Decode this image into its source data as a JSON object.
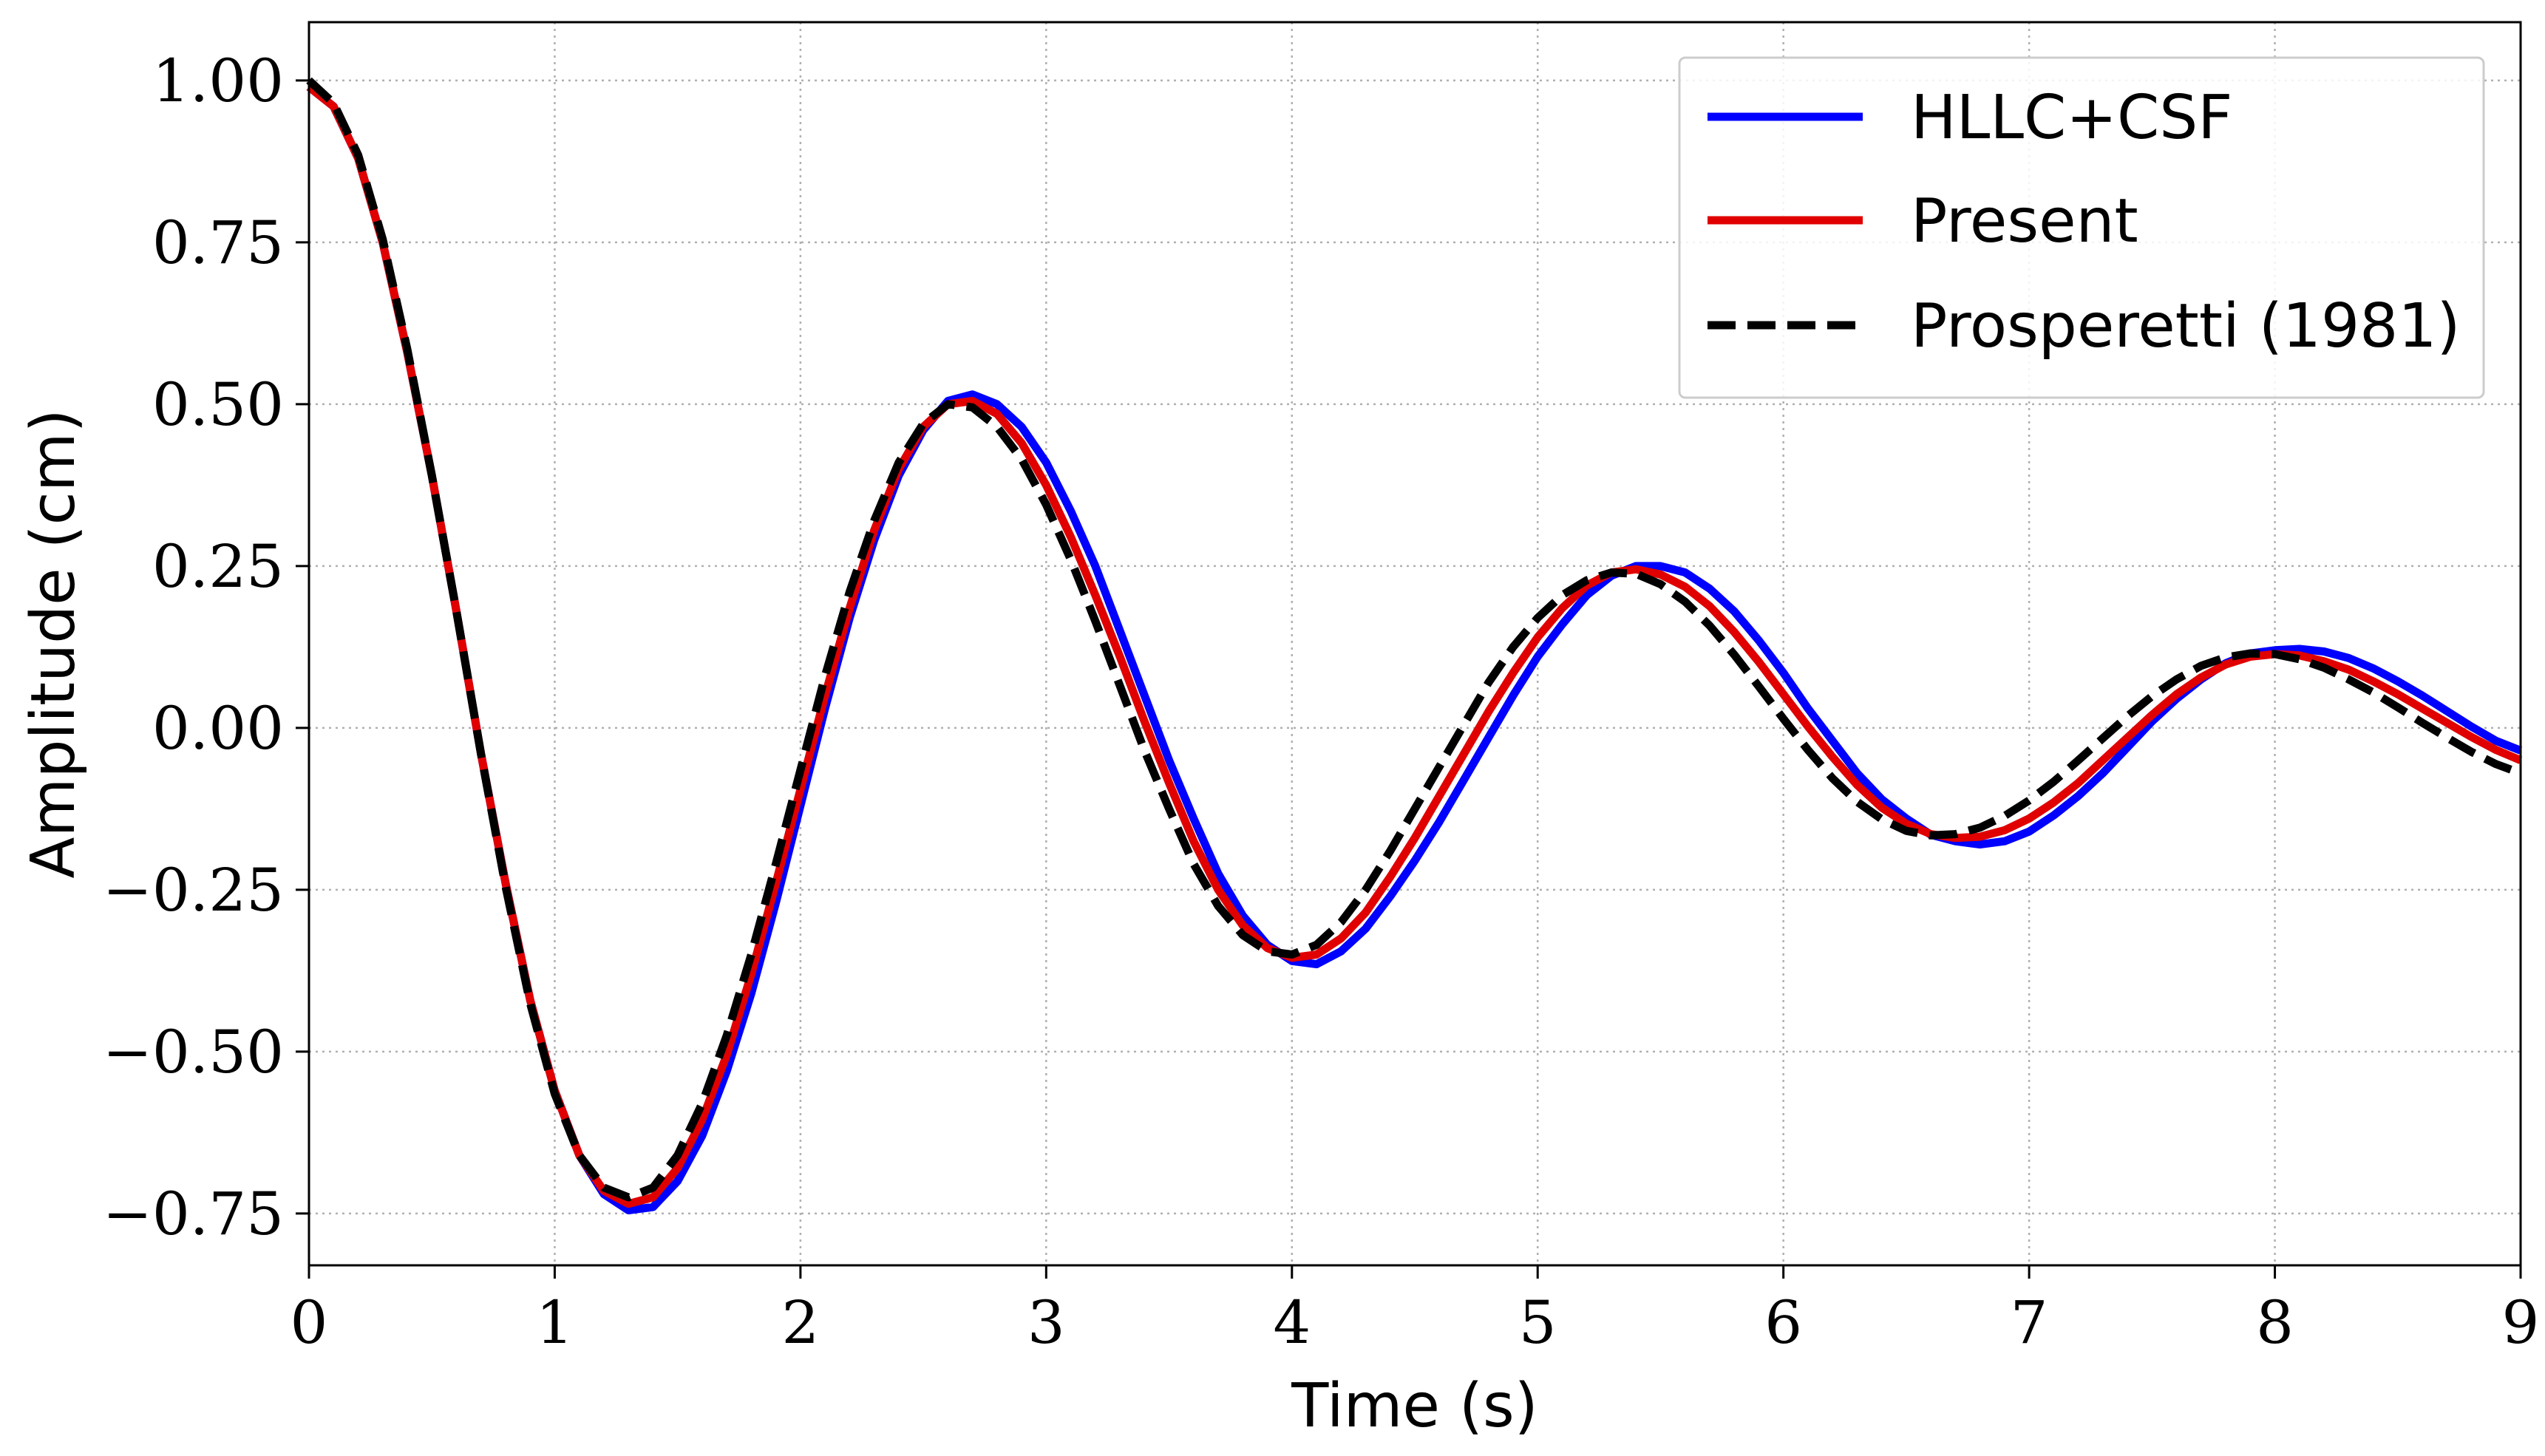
{
  "chart_data": {
    "type": "line",
    "title": "",
    "xlabel": "Time (s)",
    "ylabel": "Amplitude (cm)",
    "xlim": [
      0,
      9
    ],
    "ylim": [
      -0.83,
      1.09
    ],
    "x_ticks": [
      0,
      1,
      2,
      3,
      4,
      5,
      6,
      7,
      8,
      9
    ],
    "x_tick_labels": [
      "0",
      "1",
      "2",
      "3",
      "4",
      "5",
      "6",
      "7",
      "8",
      "9"
    ],
    "y_ticks": [
      1.0,
      0.75,
      0.5,
      0.25,
      0.0,
      -0.25,
      -0.5,
      -0.75
    ],
    "y_tick_labels": [
      "1.00",
      "0.75",
      "0.50",
      "0.25",
      "0.00",
      "−0.25",
      "−0.50",
      "−0.75"
    ],
    "grid": true,
    "legend_position": "top-right",
    "series": [
      {
        "name": "HLLC+CSF",
        "color": "#0000ff",
        "style": "solid",
        "x": [
          0,
          0.1,
          0.2,
          0.3,
          0.4,
          0.5,
          0.6,
          0.7,
          0.8,
          0.9,
          1.0,
          1.1,
          1.2,
          1.3,
          1.4,
          1.5,
          1.6,
          1.7,
          1.8,
          1.9,
          2.0,
          2.1,
          2.2,
          2.3,
          2.4,
          2.5,
          2.6,
          2.7,
          2.8,
          2.9,
          3.0,
          3.1,
          3.2,
          3.3,
          3.4,
          3.5,
          3.6,
          3.7,
          3.8,
          3.9,
          4.0,
          4.1,
          4.2,
          4.3,
          4.4,
          4.5,
          4.6,
          4.7,
          4.8,
          4.9,
          5.0,
          5.1,
          5.2,
          5.3,
          5.4,
          5.5,
          5.6,
          5.7,
          5.8,
          5.9,
          6.0,
          6.1,
          6.2,
          6.3,
          6.4,
          6.5,
          6.6,
          6.7,
          6.8,
          6.9,
          7.0,
          7.1,
          7.2,
          7.3,
          7.4,
          7.5,
          7.6,
          7.7,
          7.8,
          7.9,
          8.0,
          8.1,
          8.2,
          8.3,
          8.4,
          8.5,
          8.6,
          8.7,
          8.8,
          8.9,
          9.0
        ],
        "y": [
          0.99,
          0.96,
          0.88,
          0.75,
          0.58,
          0.39,
          0.18,
          -0.04,
          -0.24,
          -0.42,
          -0.56,
          -0.66,
          -0.72,
          -0.745,
          -0.74,
          -0.7,
          -0.63,
          -0.53,
          -0.41,
          -0.27,
          -0.12,
          0.03,
          0.17,
          0.29,
          0.39,
          0.46,
          0.505,
          0.515,
          0.5,
          0.465,
          0.41,
          0.335,
          0.25,
          0.15,
          0.05,
          -0.05,
          -0.14,
          -0.225,
          -0.29,
          -0.335,
          -0.36,
          -0.365,
          -0.345,
          -0.31,
          -0.26,
          -0.205,
          -0.145,
          -0.08,
          -0.015,
          0.05,
          0.11,
          0.16,
          0.205,
          0.235,
          0.25,
          0.25,
          0.24,
          0.215,
          0.18,
          0.135,
          0.085,
          0.03,
          -0.02,
          -0.07,
          -0.11,
          -0.14,
          -0.165,
          -0.175,
          -0.18,
          -0.175,
          -0.16,
          -0.135,
          -0.105,
          -0.07,
          -0.03,
          0.01,
          0.045,
          0.075,
          0.1,
          0.115,
          0.12,
          0.122,
          0.118,
          0.108,
          0.092,
          0.072,
          0.05,
          0.026,
          0.002,
          -0.02,
          -0.035
        ]
      },
      {
        "name": "Present",
        "color": "#e00000",
        "style": "solid",
        "x": [
          0,
          0.1,
          0.2,
          0.3,
          0.4,
          0.5,
          0.6,
          0.7,
          0.8,
          0.9,
          1.0,
          1.1,
          1.2,
          1.3,
          1.4,
          1.5,
          1.6,
          1.7,
          1.8,
          1.9,
          2.0,
          2.1,
          2.2,
          2.3,
          2.4,
          2.5,
          2.6,
          2.7,
          2.8,
          2.9,
          3.0,
          3.1,
          3.2,
          3.3,
          3.4,
          3.5,
          3.6,
          3.7,
          3.8,
          3.9,
          4.0,
          4.1,
          4.2,
          4.3,
          4.4,
          4.5,
          4.6,
          4.7,
          4.8,
          4.9,
          5.0,
          5.1,
          5.2,
          5.3,
          5.4,
          5.5,
          5.6,
          5.7,
          5.8,
          5.9,
          6.0,
          6.1,
          6.2,
          6.3,
          6.4,
          6.5,
          6.6,
          6.7,
          6.8,
          6.9,
          7.0,
          7.1,
          7.2,
          7.3,
          7.4,
          7.5,
          7.6,
          7.7,
          7.8,
          7.9,
          8.0,
          8.1,
          8.2,
          8.3,
          8.4,
          8.5,
          8.6,
          8.7,
          8.8,
          8.9,
          9.0
        ],
        "y": [
          0.99,
          0.96,
          0.88,
          0.75,
          0.58,
          0.39,
          0.18,
          -0.04,
          -0.24,
          -0.42,
          -0.56,
          -0.66,
          -0.715,
          -0.735,
          -0.725,
          -0.68,
          -0.605,
          -0.505,
          -0.38,
          -0.24,
          -0.095,
          0.05,
          0.185,
          0.305,
          0.4,
          0.465,
          0.5,
          0.505,
          0.485,
          0.44,
          0.375,
          0.295,
          0.205,
          0.11,
          0.01,
          -0.085,
          -0.175,
          -0.25,
          -0.305,
          -0.34,
          -0.355,
          -0.35,
          -0.325,
          -0.285,
          -0.23,
          -0.17,
          -0.105,
          -0.04,
          0.025,
          0.085,
          0.14,
          0.185,
          0.22,
          0.24,
          0.245,
          0.237,
          0.218,
          0.188,
          0.148,
          0.102,
          0.052,
          0.002,
          -0.045,
          -0.088,
          -0.123,
          -0.148,
          -0.164,
          -0.17,
          -0.168,
          -0.158,
          -0.14,
          -0.115,
          -0.085,
          -0.05,
          -0.015,
          0.02,
          0.052,
          0.078,
          0.098,
          0.11,
          0.114,
          0.112,
          0.103,
          0.09,
          0.072,
          0.052,
          0.03,
          0.008,
          -0.014,
          -0.034,
          -0.05
        ]
      },
      {
        "name": "Prosperetti (1981)",
        "color": "#000000",
        "style": "dashed",
        "x": [
          0,
          0.1,
          0.2,
          0.3,
          0.4,
          0.5,
          0.6,
          0.7,
          0.8,
          0.9,
          1.0,
          1.1,
          1.2,
          1.3,
          1.4,
          1.5,
          1.6,
          1.7,
          1.8,
          1.9,
          2.0,
          2.1,
          2.2,
          2.3,
          2.4,
          2.5,
          2.6,
          2.7,
          2.8,
          2.9,
          3.0,
          3.1,
          3.2,
          3.3,
          3.4,
          3.5,
          3.6,
          3.7,
          3.8,
          3.9,
          4.0,
          4.1,
          4.2,
          4.3,
          4.4,
          4.5,
          4.6,
          4.7,
          4.8,
          4.9,
          5.0,
          5.1,
          5.2,
          5.3,
          5.4,
          5.5,
          5.6,
          5.7,
          5.8,
          5.9,
          6.0,
          6.1,
          6.2,
          6.3,
          6.4,
          6.5,
          6.6,
          6.7,
          6.8,
          6.9,
          7.0,
          7.1,
          7.2,
          7.3,
          7.4,
          7.5,
          7.6,
          7.7,
          7.8,
          7.9,
          8.0,
          8.1,
          8.2,
          8.3,
          8.4,
          8.5,
          8.6,
          8.7,
          8.8,
          8.9,
          9.0
        ],
        "y": [
          1.0,
          0.965,
          0.885,
          0.755,
          0.585,
          0.39,
          0.18,
          -0.04,
          -0.245,
          -0.425,
          -0.565,
          -0.66,
          -0.71,
          -0.725,
          -0.71,
          -0.66,
          -0.58,
          -0.475,
          -0.35,
          -0.21,
          -0.065,
          0.08,
          0.21,
          0.32,
          0.41,
          0.47,
          0.5,
          0.495,
          0.465,
          0.415,
          0.345,
          0.26,
          0.165,
          0.065,
          -0.035,
          -0.125,
          -0.21,
          -0.275,
          -0.32,
          -0.345,
          -0.35,
          -0.335,
          -0.3,
          -0.25,
          -0.19,
          -0.125,
          -0.06,
          0.005,
          0.07,
          0.125,
          0.17,
          0.205,
          0.228,
          0.24,
          0.238,
          0.222,
          0.195,
          0.158,
          0.113,
          0.064,
          0.014,
          -0.034,
          -0.078,
          -0.114,
          -0.141,
          -0.159,
          -0.166,
          -0.164,
          -0.154,
          -0.136,
          -0.112,
          -0.083,
          -0.05,
          -0.016,
          0.018,
          0.049,
          0.075,
          0.096,
          0.109,
          0.115,
          0.114,
          0.106,
          0.093,
          0.075,
          0.055,
          0.032,
          0.008,
          -0.015,
          -0.037,
          -0.056,
          -0.07
        ]
      }
    ]
  }
}
